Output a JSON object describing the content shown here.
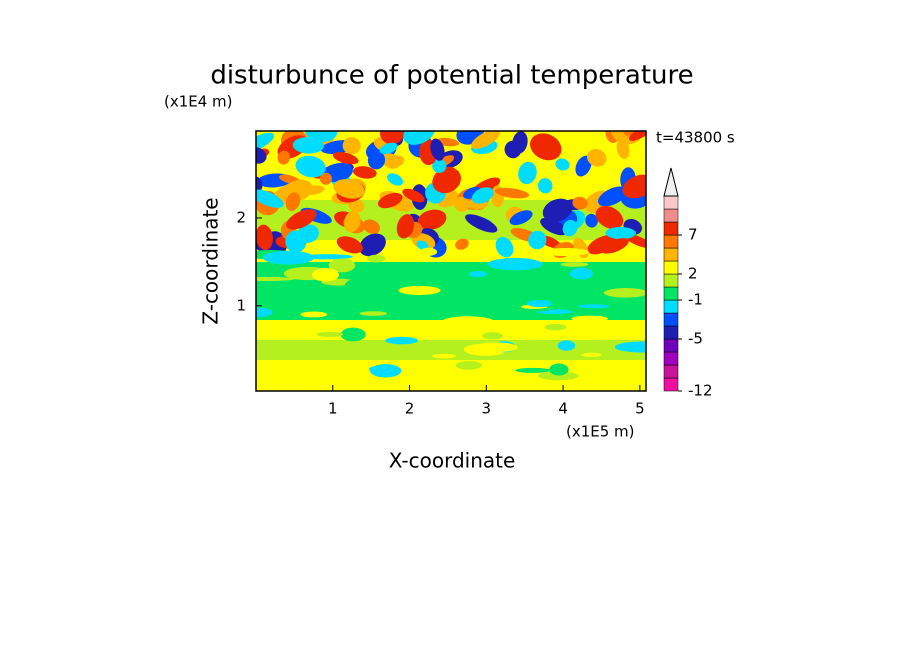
{
  "chart_data": {
    "type": "contour",
    "title": "disturbunce of potential temperature",
    "annotation": "t=43800 s",
    "x_label": "X-coordinate",
    "y_label": "Z-coordinate",
    "x_unit": "(x1E5 m)",
    "y_unit": "(x1E4 m)",
    "xlim": [
      0,
      5.08
    ],
    "xticks": [
      1,
      2,
      3,
      4,
      5
    ],
    "ylim": [
      0.03,
      2.99
    ],
    "yticks": [
      1,
      2
    ],
    "colorbar": {
      "colors": [
        "#f0109f",
        "#c8149b",
        "#a000c0",
        "#6e00be",
        "#1e1eb4",
        "#0050ff",
        "#00dcff",
        "#00e664",
        "#b4f01e",
        "#ffff00",
        "#ffb400",
        "#ff7800",
        "#f02800",
        "#f08c8c",
        "#fac8c8"
      ],
      "ticks": [
        -12,
        -5,
        -1,
        2,
        7
      ]
    }
  }
}
